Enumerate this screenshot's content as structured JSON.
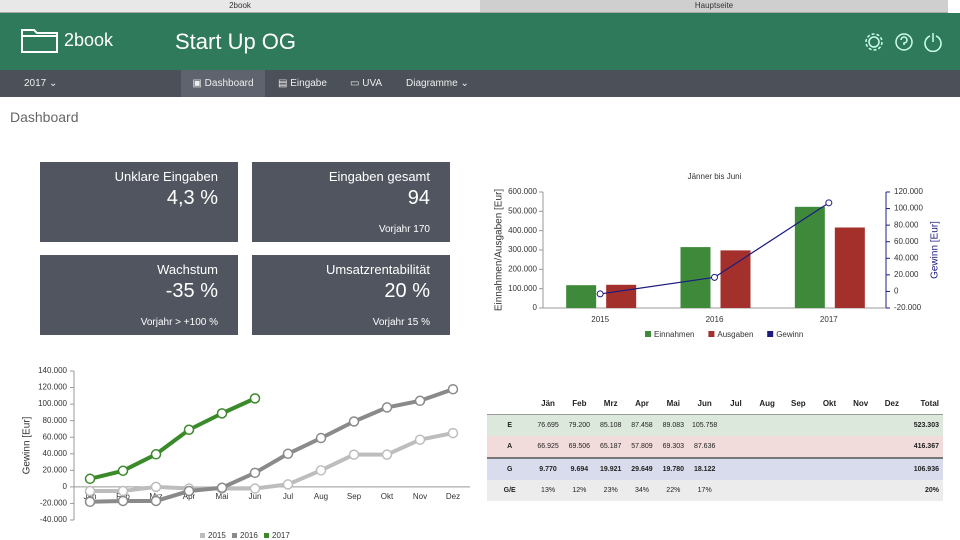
{
  "browser": {
    "tabs": [
      "2book",
      "Hauptseite"
    ]
  },
  "header": {
    "logo": "2book",
    "title": "Start Up OG"
  },
  "nav": {
    "year": "2017",
    "items": [
      "Dashboard",
      "Eingabe",
      "UVA",
      "Diagramme"
    ]
  },
  "page_title": "Dashboard",
  "cards": [
    {
      "title": "Unklare Eingaben",
      "value": "4,3 %",
      "sub": null
    },
    {
      "title": "Eingaben gesamt",
      "value": "94",
      "sub": "Vorjahr 170"
    },
    {
      "title": "Wachstum",
      "value": "-35 %",
      "sub": "Vorjahr > +100 %"
    },
    {
      "title": "Umsatzrentabilität",
      "value": "20 %",
      "sub": "Vorjahr 15 %"
    }
  ],
  "chart_data": [
    {
      "type": "bar",
      "title": "Jänner bis Juni",
      "y_label": "Einnahmen/Ausgaben [Eur]",
      "y2_label": "Gewinn [Eur]",
      "categories": [
        "2015",
        "2016",
        "2017"
      ],
      "series": [
        {
          "name": "Einnahmen",
          "color": "#3f8a3a",
          "values": [
            118000,
            315000,
            523303
          ]
        },
        {
          "name": "Ausgaben",
          "color": "#a3302a",
          "values": [
            120000,
            298000,
            416367
          ]
        },
        {
          "name": "Gewinn",
          "color": "#1c1c80",
          "axis": "y2",
          "values": [
            -3000,
            17000,
            106936
          ]
        }
      ],
      "ylim": [
        0,
        600000
      ],
      "yticks": [
        0,
        {
          "value": 100000,
          "label": "100.000"
        },
        {
          "value": 200000,
          "label": "200.000"
        },
        {
          "value": 300000,
          "label": "300.000"
        },
        {
          "value": 400000,
          "label": "400.000"
        },
        {
          "value": 500000,
          "label": "500.000"
        },
        {
          "value": 600000,
          "label": "600.000"
        }
      ],
      "y2lim": [
        -20000,
        120000
      ],
      "y2ticks": [
        {
          "value": -20000,
          "label": "-20.000"
        },
        0,
        {
          "value": 20000,
          "label": "20.000"
        },
        {
          "value": 40000,
          "label": "40.000"
        },
        {
          "value": 60000,
          "label": "60.000"
        },
        {
          "value": 80000,
          "label": "80.000"
        },
        {
          "value": 100000,
          "label": "100.000"
        },
        {
          "value": 120000,
          "label": "120.000"
        }
      ]
    },
    {
      "type": "line",
      "y_label": "Gewinn [Eur]",
      "categories": [
        "Jän",
        "Feb",
        "Mrz",
        "Apr",
        "Mai",
        "Jun",
        "Jul",
        "Aug",
        "Sep",
        "Okt",
        "Nov",
        "Dez"
      ],
      "series": [
        {
          "name": "2015",
          "color": "#bdbdbd",
          "values": [
            -5000,
            -5000,
            0,
            -2000,
            -2000,
            -2000,
            3000,
            20000,
            39000,
            39000,
            57000,
            65000
          ]
        },
        {
          "name": "2016",
          "color": "#8a8a8a",
          "values": [
            -18000,
            -17000,
            -17000,
            -5000,
            -1000,
            17000,
            40000,
            59000,
            79000,
            96000,
            104000,
            118000
          ]
        },
        {
          "name": "2017",
          "color": "#3b8a2a",
          "values": [
            9770,
            19464,
            39385,
            69034,
            88814,
            106936,
            null,
            null,
            null,
            null,
            null,
            null
          ]
        }
      ],
      "ylim": [
        -40000,
        140000
      ],
      "yticks": [
        {
          "value": -40000,
          "label": "-40.000"
        },
        {
          "value": -20000,
          "label": "-20.000"
        },
        0,
        {
          "value": 20000,
          "label": "20.000"
        },
        {
          "value": 40000,
          "label": "40.000"
        },
        {
          "value": 60000,
          "label": "60.000"
        },
        {
          "value": 80000,
          "label": "80.000"
        },
        {
          "value": 100000,
          "label": "100.000"
        },
        {
          "value": 120000,
          "label": "120.000"
        },
        {
          "value": 140000,
          "label": "140.000"
        }
      ]
    }
  ],
  "table": {
    "header": [
      "Jän",
      "Feb",
      "Mrz",
      "Apr",
      "Mai",
      "Jun",
      "Jul",
      "Aug",
      "Sep",
      "Okt",
      "Nov",
      "Dez",
      "Total"
    ],
    "rows": [
      [
        "E",
        "76.695",
        "79.200",
        "85.108",
        "87.458",
        "89.083",
        "105.758",
        null,
        null,
        null,
        null,
        null,
        null,
        "523.303"
      ],
      [
        "A",
        "66.925",
        "69.506",
        "65.187",
        "57.809",
        "69.303",
        "87.636",
        null,
        null,
        null,
        null,
        null,
        null,
        "416.367"
      ],
      [
        "G",
        "9.770",
        "9.694",
        "19.921",
        "29.649",
        "19.780",
        "18.122",
        null,
        null,
        null,
        null,
        null,
        null,
        "106.936"
      ],
      [
        "G/E",
        "13%",
        "12%",
        "23%",
        "34%",
        "22%",
        "17%",
        null,
        null,
        null,
        null,
        null,
        null,
        "20%"
      ]
    ]
  }
}
